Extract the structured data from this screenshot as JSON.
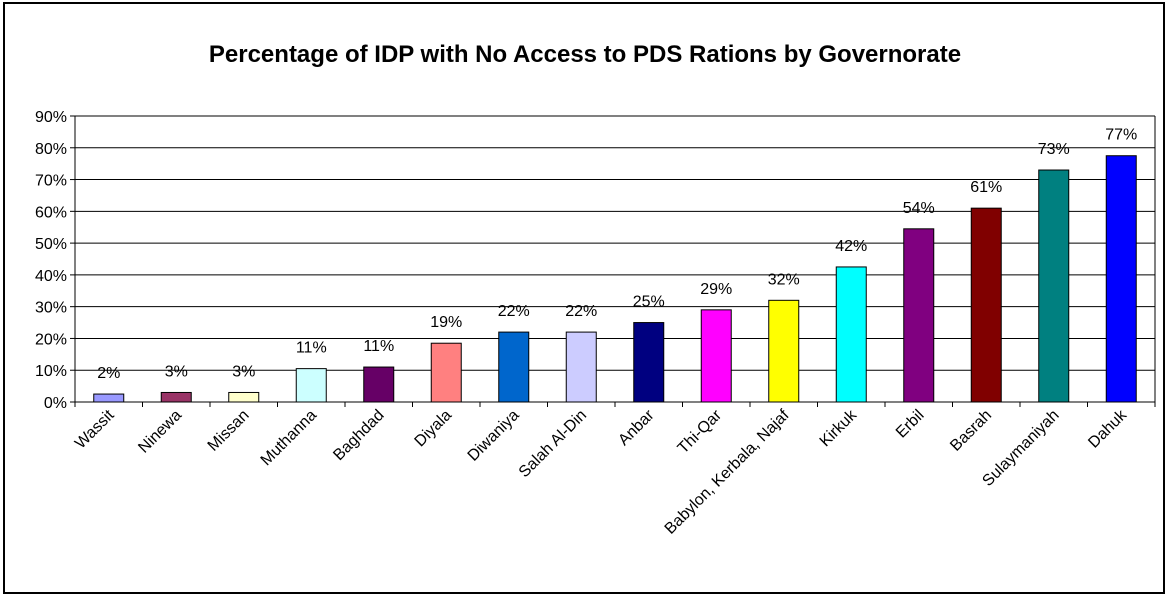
{
  "chart_data": {
    "type": "bar",
    "title": "Percentage of IDP with No Access to PDS Rations by Governorate",
    "xlabel": "",
    "ylabel": "",
    "ylim": [
      0,
      90
    ],
    "yticks": [
      "0%",
      "10%",
      "20%",
      "30%",
      "40%",
      "50%",
      "60%",
      "70%",
      "80%",
      "90%"
    ],
    "grid": true,
    "legend": "none",
    "categories": [
      "Wassit",
      "Ninewa",
      "Missan",
      "Muthanna",
      "Baghdad",
      "Diyala",
      "Diwaniya",
      "Salah Al-Din",
      "Anbar",
      "Thi-Qar",
      "Babylon, Kerbala, Najaf",
      "Kirkuk",
      "Erbil",
      "Basrah",
      "Sulaymaniyah",
      "Dahuk"
    ],
    "values": [
      2.5,
      3,
      3,
      10.5,
      11,
      18.5,
      22,
      22,
      25,
      29,
      32,
      42.5,
      54.5,
      61,
      73,
      77.5
    ],
    "data_labels": [
      "2%",
      "3%",
      "3%",
      "11%",
      "11%",
      "19%",
      "22%",
      "22%",
      "25%",
      "29%",
      "32%",
      "42%",
      "54%",
      "61%",
      "73%",
      "77%"
    ],
    "colors": [
      "#9999FF",
      "#993366",
      "#FFFFCC",
      "#CCFFFF",
      "#660066",
      "#FF8080",
      "#0066CC",
      "#CCCCFF",
      "#000080",
      "#FF00FF",
      "#FFFF00",
      "#00FFFF",
      "#800080",
      "#800000",
      "#008080",
      "#0000FF"
    ]
  }
}
